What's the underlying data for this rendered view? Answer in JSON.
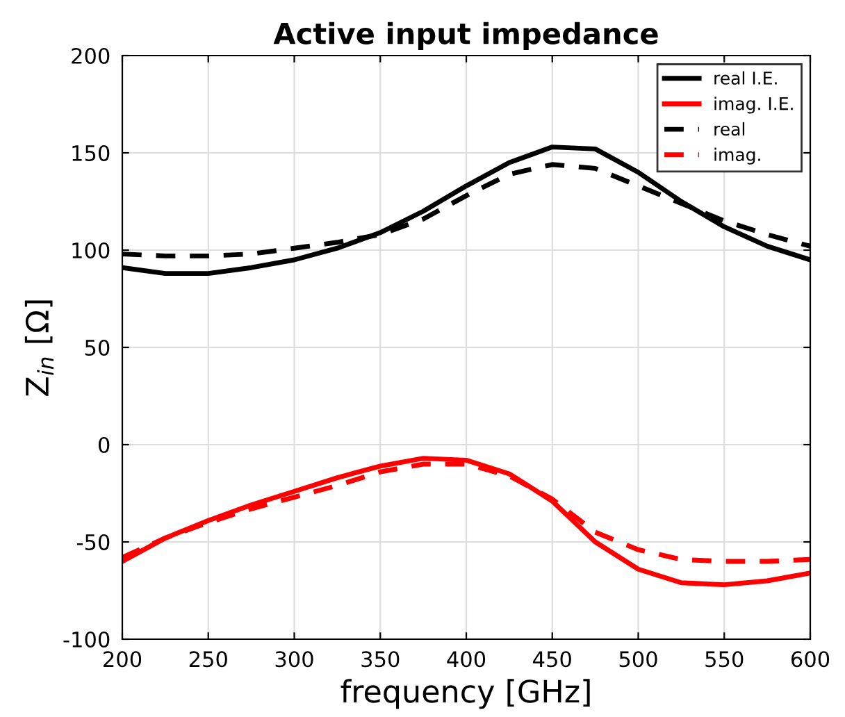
{
  "chart_data": {
    "type": "line",
    "title": "Active input impedance",
    "xlabel": "frequency [GHz]",
    "ylabel": "Z$_{in}$ [Ω]",
    "x": [
      200,
      225,
      250,
      275,
      300,
      325,
      350,
      375,
      400,
      425,
      450,
      475,
      500,
      525,
      550,
      575,
      600
    ],
    "series": [
      {
        "name": "real I.E.",
        "color": "#000000",
        "line_style": "solid",
        "values": [
          91,
          88,
          88,
          91,
          95,
          101,
          109,
          120,
          133,
          145,
          153,
          152,
          140,
          125,
          112,
          102,
          95
        ]
      },
      {
        "name": "imag. I.E.",
        "color": "#ff0000",
        "line_style": "solid",
        "values": [
          -60,
          -48,
          -39,
          -31,
          -24,
          -17,
          -11,
          -7,
          -8,
          -15,
          -29,
          -50,
          -64,
          -71,
          -72,
          -70,
          -66
        ]
      },
      {
        "name": "real",
        "color": "#000000",
        "line_style": "dashed",
        "values": [
          98,
          97,
          97,
          98,
          101,
          104,
          108,
          116,
          128,
          139,
          144,
          142,
          133,
          124,
          115,
          108,
          102
        ]
      },
      {
        "name": "imag.",
        "color": "#ff0000",
        "line_style": "dashed",
        "values": [
          -58,
          -48,
          -40,
          -33,
          -27,
          -21,
          -14,
          -10,
          -10,
          -16,
          -28,
          -45,
          -54,
          -59,
          -60,
          -60,
          -59
        ]
      }
    ],
    "xlim": [
      200,
      600
    ],
    "xticks": [
      200,
      250,
      300,
      350,
      400,
      450,
      500,
      550,
      600
    ],
    "ylim": [
      -100,
      200
    ],
    "yticks": [
      -100,
      -50,
      0,
      50,
      100,
      150,
      200
    ],
    "grid": true,
    "legend": "top right",
    "marker": "none"
  }
}
